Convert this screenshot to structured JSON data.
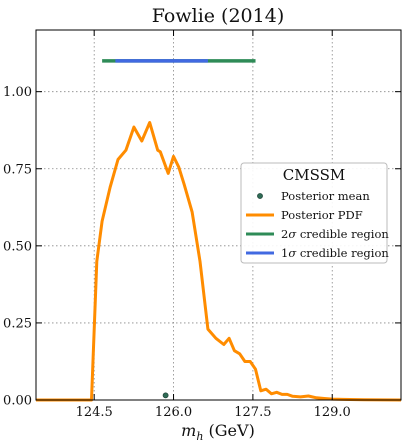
{
  "chart_data": {
    "type": "line",
    "title": "Fowlie (2014)",
    "xlabel": "m_h (GeV)",
    "ylabel": "",
    "xlim": [
      123.4,
      130.3
    ],
    "ylim": [
      0.0,
      1.2
    ],
    "xticks": [
      124.5,
      126.0,
      127.5,
      129.0
    ],
    "xtick_labels": [
      "124.5",
      "126.0",
      "127.5",
      "129.0"
    ],
    "yticks": [
      0.0,
      0.25,
      0.5,
      0.75,
      1.0
    ],
    "ytick_labels": [
      "0.00",
      "0.25",
      "0.50",
      "0.75",
      "1.00"
    ],
    "grid": true,
    "legend_title": "CMSSM",
    "legend_position": "right",
    "series": [
      {
        "name": "Posterior PDF",
        "kind": "line",
        "color": "#ff8c00",
        "x": [
          123.4,
          124.45,
          124.55,
          124.65,
          124.8,
          124.95,
          125.1,
          125.25,
          125.4,
          125.55,
          125.7,
          125.75,
          125.9,
          126.0,
          126.1,
          126.2,
          126.35,
          126.5,
          126.65,
          126.8,
          126.95,
          127.05,
          127.15,
          127.25,
          127.35,
          127.45,
          127.55,
          127.65,
          127.75,
          127.85,
          127.95,
          128.05,
          128.15,
          128.25,
          128.4,
          128.55,
          128.7,
          128.85,
          129.0,
          129.2,
          129.6,
          130.3
        ],
        "y": [
          0.0,
          0.0,
          0.45,
          0.58,
          0.69,
          0.78,
          0.81,
          0.885,
          0.84,
          0.9,
          0.81,
          0.805,
          0.735,
          0.79,
          0.755,
          0.7,
          0.61,
          0.45,
          0.23,
          0.2,
          0.18,
          0.2,
          0.16,
          0.15,
          0.125,
          0.125,
          0.1,
          0.03,
          0.035,
          0.02,
          0.025,
          0.018,
          0.018,
          0.012,
          0.01,
          0.013,
          0.007,
          0.005,
          0.003,
          0.002,
          0.001,
          0.0
        ]
      },
      {
        "name": "Posterior mean",
        "kind": "point",
        "color": "#2e6b55",
        "x": [
          125.85
        ],
        "y": [
          0.015
        ]
      },
      {
        "name": "2σ credible region",
        "kind": "interval",
        "color": "#2e8b57",
        "x": [
          124.65,
          127.55
        ],
        "y": [
          1.1,
          1.1
        ]
      },
      {
        "name": "1σ credible region",
        "kind": "interval",
        "color": "#4169e1",
        "x": [
          124.9,
          126.65
        ],
        "y": [
          1.1,
          1.1
        ]
      }
    ]
  }
}
